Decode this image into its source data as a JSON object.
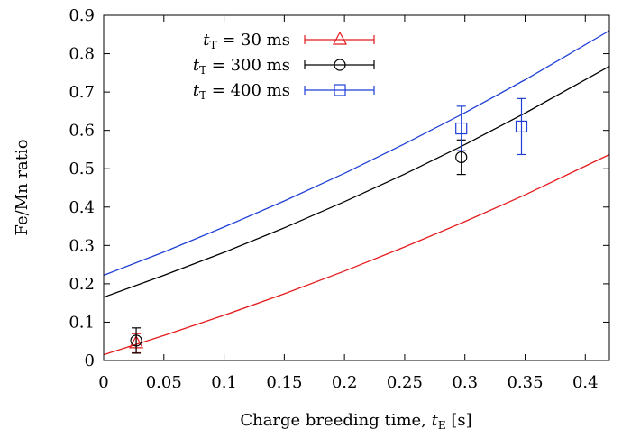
{
  "chart_data": {
    "type": "scatter",
    "title": "",
    "xlabel": "Charge breeding time, t_E [s]",
    "xlabel_parts": {
      "main": "Charge breeding time, ",
      "var": "t",
      "sub": "E",
      "unit": " [s]"
    },
    "ylabel": "Fe/Mn ratio",
    "xlim": [
      0,
      0.42
    ],
    "ylim": [
      0,
      0.9
    ],
    "x_ticks": [
      {
        "value": 0,
        "label": "0"
      },
      {
        "value": 0.05,
        "label": "0.05"
      },
      {
        "value": 0.1,
        "label": "0.1"
      },
      {
        "value": 0.15,
        "label": "0.15"
      },
      {
        "value": 0.2,
        "label": "0.2"
      },
      {
        "value": 0.25,
        "label": "0.25"
      },
      {
        "value": 0.3,
        "label": "0.3"
      },
      {
        "value": 0.35,
        "label": "0.35"
      },
      {
        "value": 0.4,
        "label": "0.4"
      }
    ],
    "y_ticks": [
      {
        "value": 0,
        "label": "0"
      },
      {
        "value": 0.1,
        "label": "0.1"
      },
      {
        "value": 0.2,
        "label": "0.2"
      },
      {
        "value": 0.3,
        "label": "0.3"
      },
      {
        "value": 0.4,
        "label": "0.4"
      },
      {
        "value": 0.5,
        "label": "0.5"
      },
      {
        "value": 0.6,
        "label": "0.6"
      },
      {
        "value": 0.7,
        "label": "0.7"
      },
      {
        "value": 0.8,
        "label": "0.8"
      },
      {
        "value": 0.9,
        "label": "0.9"
      }
    ],
    "grid": false,
    "legend_position": "top-left",
    "series": [
      {
        "name": "t_T = 30 ms",
        "legend": {
          "var": "t",
          "sub": "T",
          "rest": " = 30 ms"
        },
        "color": "#e41a1c",
        "marker": "triangle",
        "points": [
          {
            "x": 0.027,
            "y": 0.045,
            "err": 0.025
          }
        ],
        "curve": [
          {
            "x": 0.0,
            "y": 0.015
          },
          {
            "x": 0.05,
            "y": 0.065
          },
          {
            "x": 0.1,
            "y": 0.118
          },
          {
            "x": 0.15,
            "y": 0.174
          },
          {
            "x": 0.2,
            "y": 0.233
          },
          {
            "x": 0.25,
            "y": 0.296
          },
          {
            "x": 0.3,
            "y": 0.362
          },
          {
            "x": 0.35,
            "y": 0.432
          },
          {
            "x": 0.42,
            "y": 0.537
          }
        ]
      },
      {
        "name": "t_T = 300 ms",
        "legend": {
          "var": "t",
          "sub": "T",
          "rest": " = 300 ms"
        },
        "color": "#000000",
        "marker": "circle",
        "points": [
          {
            "x": 0.027,
            "y": 0.052,
            "err": 0.033
          },
          {
            "x": 0.297,
            "y": 0.53,
            "err": 0.045
          }
        ],
        "curve": [
          {
            "x": 0.0,
            "y": 0.165
          },
          {
            "x": 0.05,
            "y": 0.222
          },
          {
            "x": 0.1,
            "y": 0.282
          },
          {
            "x": 0.15,
            "y": 0.346
          },
          {
            "x": 0.2,
            "y": 0.414
          },
          {
            "x": 0.25,
            "y": 0.486
          },
          {
            "x": 0.3,
            "y": 0.563
          },
          {
            "x": 0.35,
            "y": 0.645
          },
          {
            "x": 0.42,
            "y": 0.767
          }
        ]
      },
      {
        "name": "t_T = 400 ms",
        "legend": {
          "var": "t",
          "sub": "T",
          "rest": " = 400 ms"
        },
        "color": "#1f3fd6",
        "marker": "square",
        "points": [
          {
            "x": 0.297,
            "y": 0.605,
            "err": 0.058
          },
          {
            "x": 0.347,
            "y": 0.61,
            "err": 0.073
          }
        ],
        "curve": [
          {
            "x": 0.0,
            "y": 0.222
          },
          {
            "x": 0.05,
            "y": 0.283
          },
          {
            "x": 0.1,
            "y": 0.348
          },
          {
            "x": 0.15,
            "y": 0.416
          },
          {
            "x": 0.2,
            "y": 0.488
          },
          {
            "x": 0.25,
            "y": 0.565
          },
          {
            "x": 0.3,
            "y": 0.646
          },
          {
            "x": 0.35,
            "y": 0.732
          },
          {
            "x": 0.42,
            "y": 0.86
          }
        ]
      }
    ]
  }
}
